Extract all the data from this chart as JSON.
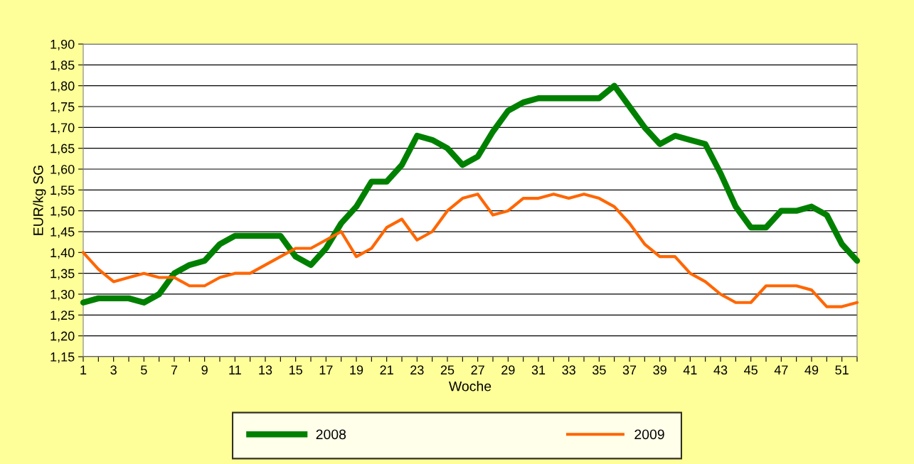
{
  "chart_data": {
    "type": "line",
    "xlabel": "Woche",
    "ylabel": "EUR/kg SG",
    "categories": [
      "1",
      null,
      "3",
      null,
      "5",
      null,
      "7",
      null,
      "9",
      null,
      "11",
      null,
      "13",
      null,
      "15",
      null,
      "17",
      null,
      "19",
      null,
      "21",
      null,
      "23",
      null,
      "25",
      null,
      "27",
      null,
      "29",
      null,
      "31",
      null,
      "33",
      null,
      "35",
      null,
      "37",
      null,
      "39",
      null,
      "41",
      null,
      "43",
      null,
      "45",
      null,
      "47",
      null,
      "49",
      null,
      "51",
      null
    ],
    "series": [
      {
        "name": "2008",
        "color": "#008000",
        "values": [
          1.28,
          1.29,
          1.29,
          1.29,
          1.28,
          1.3,
          1.35,
          1.37,
          1.38,
          1.42,
          1.44,
          1.44,
          1.44,
          1.44,
          1.39,
          1.37,
          1.41,
          1.47,
          1.51,
          1.57,
          1.57,
          1.61,
          1.68,
          1.67,
          1.65,
          1.61,
          1.63,
          1.69,
          1.74,
          1.76,
          1.77,
          1.77,
          1.77,
          1.77,
          1.77,
          1.8,
          1.75,
          1.7,
          1.66,
          1.68,
          1.67,
          1.66,
          1.59,
          1.51,
          1.46,
          1.46,
          1.5,
          1.5,
          1.51,
          1.49,
          1.42,
          1.38
        ]
      },
      {
        "name": "2009",
        "color": "#ff6600",
        "values": [
          1.4,
          1.36,
          1.33,
          1.34,
          1.35,
          1.34,
          1.34,
          1.32,
          1.32,
          1.34,
          1.35,
          1.35,
          1.37,
          1.39,
          1.41,
          1.41,
          1.43,
          1.45,
          1.39,
          1.41,
          1.46,
          1.48,
          1.43,
          1.45,
          1.5,
          1.53,
          1.54,
          1.49,
          1.5,
          1.53,
          1.53,
          1.54,
          1.53,
          1.54,
          1.53,
          1.51,
          1.47,
          1.42,
          1.39,
          1.39,
          1.35,
          1.33,
          1.3,
          1.28,
          1.28,
          1.32,
          1.32,
          1.32,
          1.31,
          1.27,
          1.27,
          1.28
        ]
      }
    ],
    "ylim": [
      1.15,
      1.9
    ],
    "yticks": [
      {
        "value": 1.15,
        "label": "1,15"
      },
      {
        "value": 1.2,
        "label": "1,20"
      },
      {
        "value": 1.25,
        "label": "1,25"
      },
      {
        "value": 1.3,
        "label": "1,30"
      },
      {
        "value": 1.35,
        "label": "1,35"
      },
      {
        "value": 1.4,
        "label": "1,40"
      },
      {
        "value": 1.45,
        "label": "1,45"
      },
      {
        "value": 1.5,
        "label": "1,50"
      },
      {
        "value": 1.55,
        "label": "1,55"
      },
      {
        "value": 1.6,
        "label": "1,60"
      },
      {
        "value": 1.65,
        "label": "1,65"
      },
      {
        "value": 1.7,
        "label": "1,70"
      },
      {
        "value": 1.75,
        "label": "1,75"
      },
      {
        "value": 1.8,
        "label": "1,80"
      },
      {
        "value": 1.85,
        "label": "1,85"
      },
      {
        "value": 1.9,
        "label": "1,90"
      }
    ],
    "grid": "y",
    "legend": "bottom",
    "marker": "none",
    "line_style": "solid"
  }
}
